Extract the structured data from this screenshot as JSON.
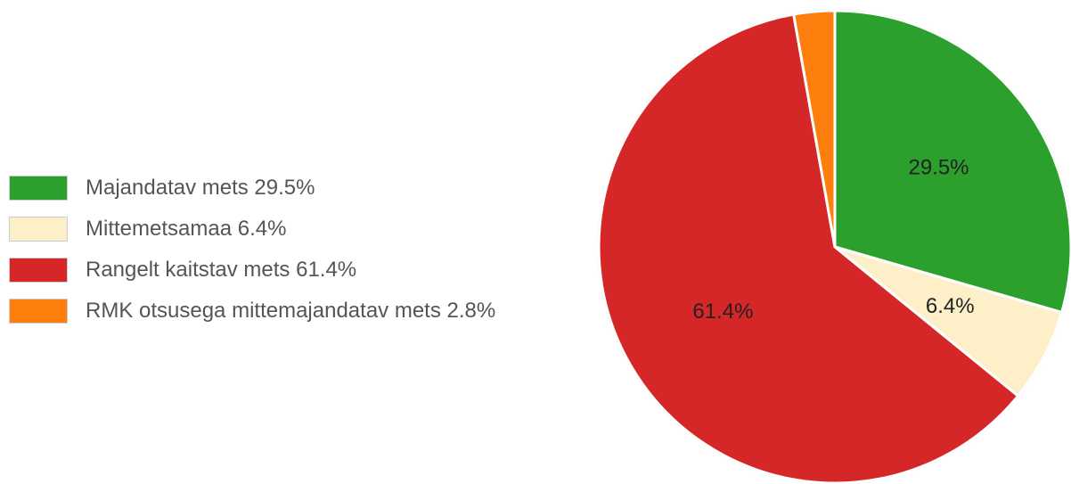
{
  "chart_data": {
    "type": "pie",
    "slices": [
      {
        "legend_label": "Majandatav mets 29.5%",
        "value": 29.5,
        "value_label": "29.5%",
        "color": "#2ca02c"
      },
      {
        "legend_label": "Mittemetsamaa 6.4%",
        "value": 6.4,
        "value_label": "6.4%",
        "color": "#fdf0c8"
      },
      {
        "legend_label": "Rangelt kaitstav mets 61.4%",
        "value": 61.4,
        "value_label": "61.4%",
        "color": "#d62728"
      },
      {
        "legend_label": "RMK otsusega mittemajandatav mets 2.8%",
        "value": 2.8,
        "value_label": "",
        "color": "#ff7f0e"
      }
    ],
    "legend_position": "left"
  }
}
